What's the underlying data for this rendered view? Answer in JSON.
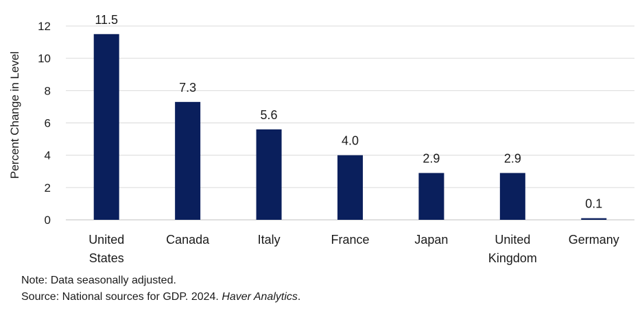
{
  "chart_data": {
    "type": "bar",
    "categories": [
      [
        "United",
        "States"
      ],
      [
        "Canada"
      ],
      [
        "Italy"
      ],
      [
        "France"
      ],
      [
        "Japan"
      ],
      [
        "United",
        "Kingdom"
      ],
      [
        "Germany"
      ]
    ],
    "values": [
      11.5,
      7.3,
      5.6,
      4.0,
      2.9,
      2.9,
      0.1
    ],
    "data_labels": [
      "11.5",
      "7.3",
      "5.6",
      "4.0",
      "2.9",
      "2.9",
      "0.1"
    ],
    "ylabel": "Percent Change in Level",
    "xlabel": "",
    "ylim": [
      0,
      12
    ],
    "yticks": [
      0,
      2,
      4,
      6,
      8,
      10,
      12
    ],
    "grid": true,
    "legend": "none",
    "bar_color": "#0a1f5c",
    "grid_color": "#d9d9d9"
  },
  "notes": {
    "note": "Note: Data seasonally adjusted.",
    "source_prefix": "Source: National sources for GDP. 2024. ",
    "source_italic": "Haver Analytics",
    "source_suffix": "."
  }
}
